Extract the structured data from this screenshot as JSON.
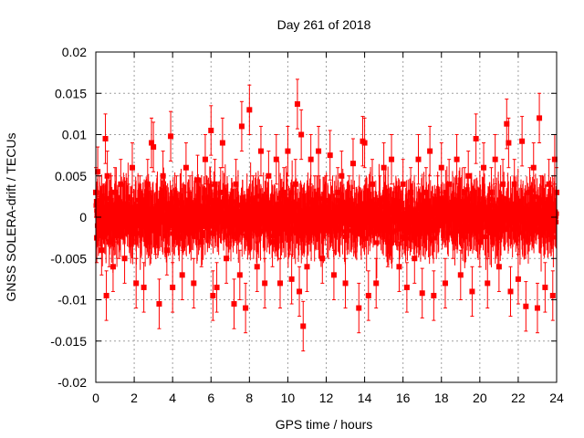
{
  "chart_data": {
    "type": "scatter",
    "title": "Day 261 of 2018",
    "xlabel": "GPS time / hours",
    "ylabel": "GNSS SOLERA-drift / TECUs",
    "xlim": [
      0,
      24
    ],
    "ylim": [
      -0.02,
      0.02
    ],
    "x_ticks": [
      0,
      2,
      4,
      6,
      8,
      10,
      12,
      14,
      16,
      18,
      20,
      22,
      24
    ],
    "y_ticks": [
      -0.02,
      -0.015,
      -0.01,
      -0.005,
      0,
      0.005,
      0.01,
      0.015,
      0.02
    ],
    "x_tick_labels": [
      "0",
      "2",
      "4",
      "6",
      "8",
      "10",
      "12",
      "14",
      "16",
      "18",
      "20",
      "22",
      "24"
    ],
    "y_tick_labels": [
      "-0.02",
      "-0.015",
      "-0.01",
      "-0.005",
      "0",
      "0.005",
      "0.01",
      "0.015",
      "0.02"
    ],
    "grid": true,
    "marker": "square",
    "error_bars": true,
    "series": [
      {
        "color": "#ff0000",
        "x": [
          0.0,
          0.05,
          0.1,
          0.2,
          0.3,
          0.4,
          0.5,
          0.55,
          0.6,
          0.7,
          0.8,
          0.9,
          1.0,
          1.1,
          1.2,
          1.3,
          1.5,
          1.7,
          1.9,
          2.1,
          2.3,
          2.5,
          2.7,
          2.9,
          3.0,
          3.1,
          3.3,
          3.5,
          3.7,
          3.9,
          4.0,
          4.2,
          4.5,
          4.7,
          4.9,
          5.1,
          5.3,
          5.5,
          5.7,
          5.9,
          6.0,
          6.1,
          6.2,
          6.3,
          6.5,
          6.6,
          6.8,
          7.0,
          7.2,
          7.3,
          7.5,
          7.6,
          7.8,
          8.0,
          8.2,
          8.4,
          8.6,
          8.8,
          9.0,
          9.2,
          9.4,
          9.6,
          9.8,
          10.0,
          10.2,
          10.4,
          10.5,
          10.6,
          10.7,
          10.8,
          11.0,
          11.2,
          11.4,
          11.6,
          11.8,
          12.0,
          12.2,
          12.4,
          12.6,
          12.8,
          13.0,
          13.2,
          13.4,
          13.5,
          13.7,
          13.9,
          14.0,
          14.2,
          14.4,
          14.6,
          14.8,
          15.0,
          15.2,
          15.4,
          15.6,
          15.8,
          16.0,
          16.2,
          16.4,
          16.6,
          16.8,
          17.0,
          17.2,
          17.4,
          17.6,
          17.8,
          18.0,
          18.2,
          18.4,
          18.6,
          18.8,
          19.0,
          19.2,
          19.4,
          19.6,
          19.8,
          20.0,
          20.2,
          20.4,
          20.6,
          20.8,
          21.0,
          21.2,
          21.4,
          21.5,
          21.6,
          21.8,
          22.0,
          22.2,
          22.4,
          22.6,
          22.8,
          23.0,
          23.1,
          23.2,
          23.4,
          23.6,
          23.8,
          23.9,
          24.0
        ],
        "y": [
          0.003,
          -0.0025,
          0.0055,
          0.002,
          -0.004,
          0.001,
          0.0095,
          -0.0095,
          0.005,
          -0.003,
          0.002,
          -0.006,
          0.003,
          0.0,
          -0.002,
          0.004,
          -0.005,
          0.001,
          0.006,
          -0.008,
          0.002,
          -0.0085,
          0.004,
          0.009,
          0.0085,
          -0.0015,
          -0.0105,
          0.005,
          -0.004,
          0.0098,
          -0.0085,
          0.002,
          -0.007,
          0.006,
          0.002,
          -0.008,
          0.0045,
          -0.003,
          0.007,
          0.001,
          0.0105,
          -0.0095,
          0.004,
          -0.0085,
          0.003,
          0.009,
          -0.005,
          0.0,
          -0.0105,
          0.004,
          -0.007,
          0.011,
          -0.011,
          0.013,
          0.002,
          -0.006,
          0.008,
          -0.008,
          0.005,
          -0.003,
          0.007,
          -0.008,
          0.003,
          0.008,
          -0.0075,
          0.004,
          0.0137,
          -0.009,
          0.01,
          -0.0132,
          -0.006,
          0.007,
          0.002,
          0.008,
          -0.005,
          0.002,
          0.0075,
          -0.007,
          0.003,
          0.005,
          -0.008,
          0.002,
          0.0065,
          -0.0012,
          -0.011,
          0.0092,
          0.009,
          -0.0095,
          0.004,
          -0.008,
          0.002,
          0.006,
          -0.003,
          0.007,
          0.0,
          -0.006,
          0.004,
          -0.0085,
          0.003,
          -0.005,
          0.007,
          -0.0092,
          0.003,
          0.008,
          -0.0095,
          0.002,
          0.006,
          -0.008,
          0.004,
          -0.002,
          0.007,
          -0.007,
          0.003,
          0.005,
          -0.009,
          0.0095,
          -0.003,
          0.006,
          -0.008,
          0.003,
          0.007,
          -0.006,
          0.004,
          0.0113,
          0.009,
          -0.009,
          0.004,
          -0.0075,
          0.0092,
          -0.0108,
          0.003,
          0.006,
          -0.011,
          0.012,
          0.002,
          -0.0085,
          0.004,
          -0.0095,
          0.007,
          0.003
        ]
      }
    ]
  }
}
